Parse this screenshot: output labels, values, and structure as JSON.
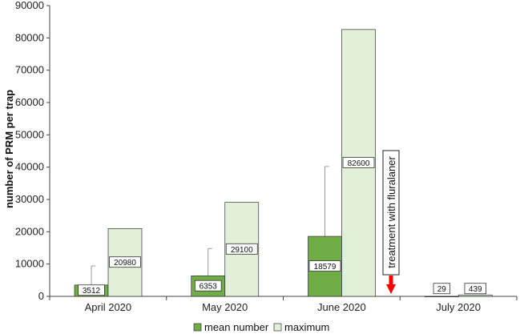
{
  "chart_data": {
    "type": "bar",
    "ylabel": "number of PRM per trap",
    "xlabel": "",
    "ylim": [
      0,
      90000
    ],
    "yticks": [
      0,
      10000,
      20000,
      30000,
      40000,
      50000,
      60000,
      70000,
      80000,
      90000
    ],
    "categories": [
      "April 2020",
      "May 2020",
      "June 2020",
      "July 2020"
    ],
    "series": [
      {
        "name": "mean number",
        "color": "#70AD47",
        "values": [
          3512,
          6353,
          18579,
          29
        ],
        "error_upper": [
          9400,
          14800,
          40200,
          null
        ]
      },
      {
        "name": "maximum",
        "color": "#E2EFD9",
        "values": [
          20980,
          29100,
          82600,
          439
        ]
      }
    ],
    "annotation": {
      "text": "treatment with fluralaner",
      "arrow_color": "#FF0000"
    },
    "legend_position": "bottom",
    "grid": false
  }
}
